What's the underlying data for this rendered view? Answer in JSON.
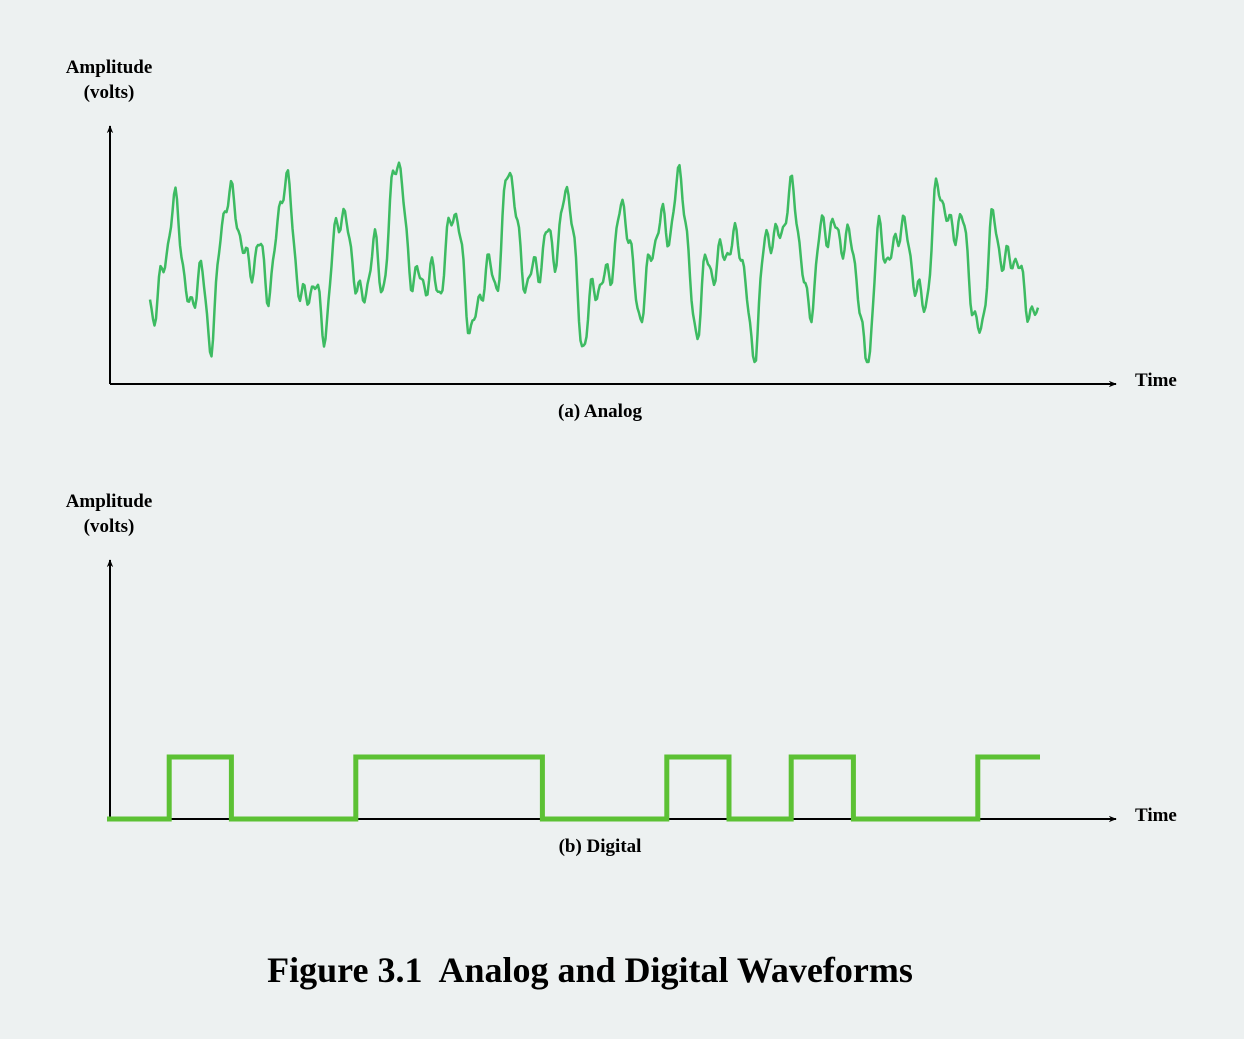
{
  "panels": [
    {
      "id": "analog",
      "ylabel_line1": "Amplitude",
      "ylabel_line2": "(volts)",
      "xlabel": "Time",
      "sublabel": "(a) Analog"
    },
    {
      "id": "digital",
      "ylabel_line1": "Amplitude",
      "ylabel_line2": "(volts)",
      "xlabel": "Time",
      "sublabel": "(b) Digital",
      "bits": [
        0,
        1,
        0,
        0,
        1,
        1,
        1,
        0,
        0,
        1,
        0,
        1,
        0,
        0,
        1
      ]
    }
  ],
  "caption": "Figure 3.1  Analog and Digital Waveforms",
  "colors": {
    "background": "#edf1f1",
    "analog_wave": "#3dbb62",
    "digital_wave": "#5cc134",
    "axes": "#000000"
  }
}
